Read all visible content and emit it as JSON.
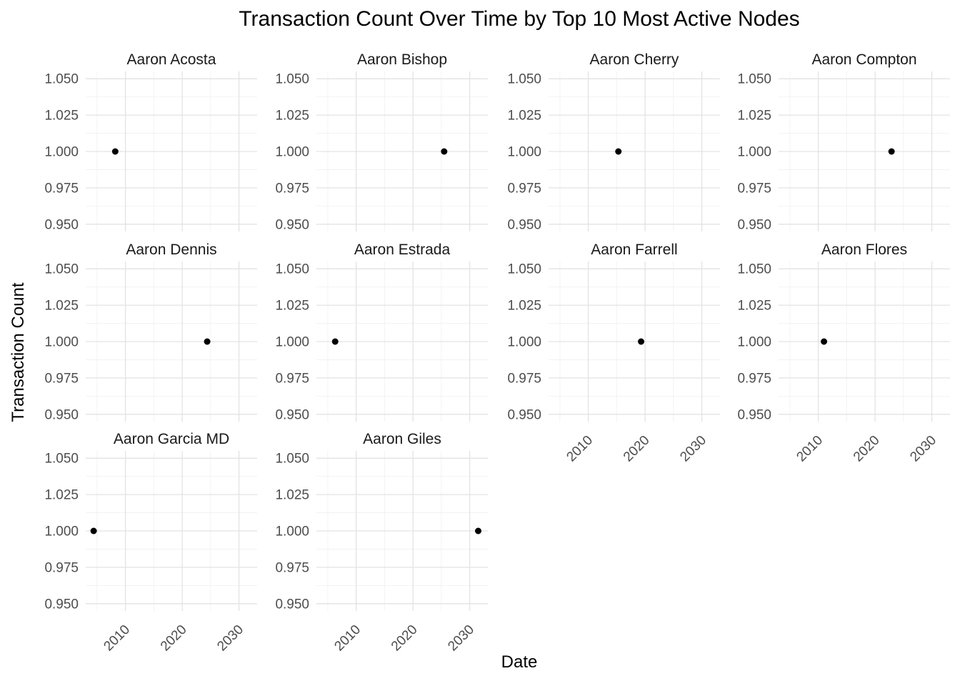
{
  "chart_data": {
    "type": "scatter",
    "title": "Transaction Count Over Time by Top 10 Most Active Nodes",
    "xlabel": "Date",
    "ylabel": "Transaction Count",
    "xlim": [
      2003,
      2033.2
    ],
    "ylim": [
      0.945,
      1.055
    ],
    "x_tick_values": [
      2010,
      2020,
      2030
    ],
    "x_tick_labels": [
      "2010",
      "2020",
      "2030"
    ],
    "x_minor_tick_values": [
      2005,
      2015,
      2025
    ],
    "y_tick_values": [
      0.95,
      0.975,
      1.0,
      1.025,
      1.05
    ],
    "y_tick_labels": [
      "0.950",
      "0.975",
      "1.000",
      "1.025",
      "1.050"
    ],
    "y_minor_tick_values": [
      0.9625,
      0.9875,
      1.0125,
      1.0375
    ],
    "grid": true,
    "legend": false,
    "point_color": "#000000",
    "background_color": "#ffffff",
    "major_grid_color": "#e3e3e3",
    "minor_grid_color": "#f0f0f0",
    "tick_text_color": "#4d4d4d",
    "facets": [
      {
        "label": "Aaron Acosta",
        "points": [
          {
            "x": 2008.2,
            "y": 1.0
          }
        ]
      },
      {
        "label": "Aaron Bishop",
        "points": [
          {
            "x": 2025.5,
            "y": 1.0
          }
        ]
      },
      {
        "label": "Aaron Cherry",
        "points": [
          {
            "x": 2015.3,
            "y": 1.0
          }
        ]
      },
      {
        "label": "Aaron Compton",
        "points": [
          {
            "x": 2022.9,
            "y": 1.0
          }
        ]
      },
      {
        "label": "Aaron Dennis",
        "points": [
          {
            "x": 2024.4,
            "y": 1.0
          }
        ]
      },
      {
        "label": "Aaron Estrada",
        "points": [
          {
            "x": 2006.3,
            "y": 1.0
          }
        ]
      },
      {
        "label": "Aaron Farrell",
        "points": [
          {
            "x": 2019.3,
            "y": 1.0
          }
        ]
      },
      {
        "label": "Aaron Flores",
        "points": [
          {
            "x": 2011.0,
            "y": 1.0
          }
        ]
      },
      {
        "label": "Aaron Garcia MD",
        "points": [
          {
            "x": 2004.4,
            "y": 1.0
          }
        ]
      },
      {
        "label": "Aaron Giles",
        "points": [
          {
            "x": 2031.5,
            "y": 1.0
          }
        ]
      }
    ]
  }
}
